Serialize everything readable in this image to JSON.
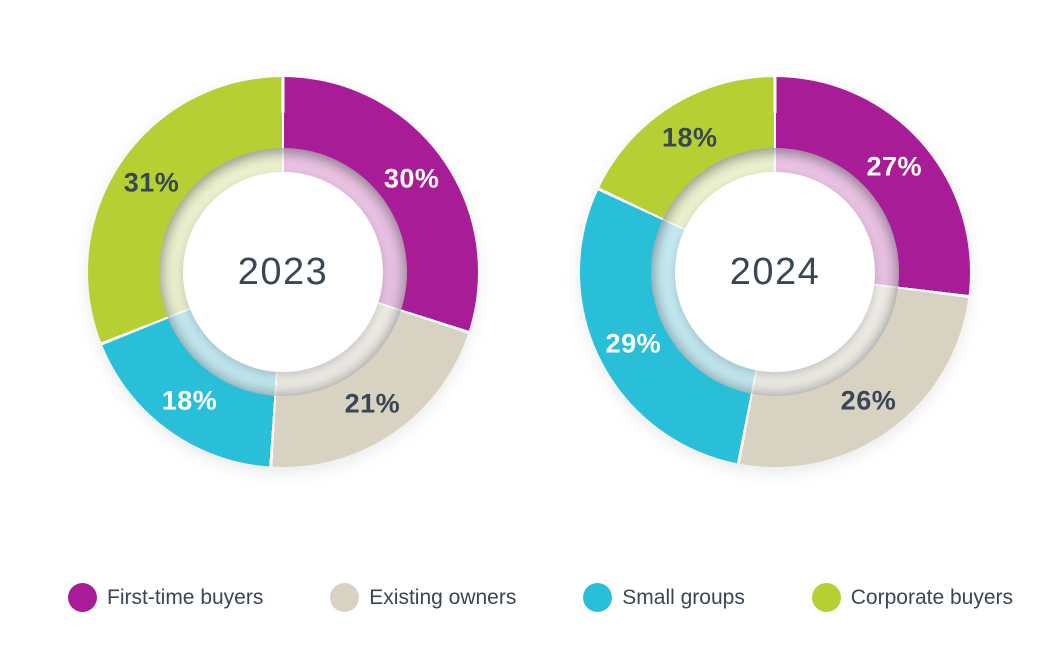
{
  "chart_data": [
    {
      "type": "pie",
      "subtype": "donut",
      "center_label": "2023",
      "unit": "%",
      "start_angle_deg": 0,
      "direction": "clockwise",
      "segments": [
        {
          "label": "First-time buyers",
          "value": 30,
          "color": "#A91C97",
          "pastel": "#E9C2E2",
          "label_color": "#FFFFFF"
        },
        {
          "label": "Existing owners",
          "value": 21,
          "color": "#D8D2C3",
          "pastel": "#F0EEE7",
          "label_color": "#394653"
        },
        {
          "label": "Small groups",
          "value": 18,
          "color": "#29BFD9",
          "pastel": "#C4EAF2",
          "label_color": "#FFFFFF"
        },
        {
          "label": "Corporate buyers",
          "value": 31,
          "color": "#B6CF33",
          "pastel": "#EBF0CE",
          "label_color": "#394653"
        }
      ]
    },
    {
      "type": "pie",
      "subtype": "donut",
      "center_label": "2024",
      "unit": "%",
      "start_angle_deg": 0,
      "direction": "clockwise",
      "segments": [
        {
          "label": "First-time buyers",
          "value": 27,
          "color": "#A91C97",
          "pastel": "#E9C2E2",
          "label_color": "#FFFFFF"
        },
        {
          "label": "Existing owners",
          "value": 26,
          "color": "#D8D2C3",
          "pastel": "#F0EEE7",
          "label_color": "#394653"
        },
        {
          "label": "Small groups",
          "value": 29,
          "color": "#29BFD9",
          "pastel": "#C4EAF2",
          "label_color": "#FFFFFF"
        },
        {
          "label": "Corporate buyers",
          "value": 18,
          "color": "#B6CF33",
          "pastel": "#EBF0CE",
          "label_color": "#394653"
        }
      ]
    }
  ],
  "legend": {
    "items": [
      {
        "label": "First-time buyers",
        "color": "#A91C97"
      },
      {
        "label": "Existing owners",
        "color": "#D8D2C3"
      },
      {
        "label": "Small groups",
        "color": "#29BFD9"
      },
      {
        "label": "Corporate buyers",
        "color": "#B6CF33"
      }
    ]
  },
  "colors": {
    "text_dark": "#394653",
    "background": "#FFFFFF"
  }
}
